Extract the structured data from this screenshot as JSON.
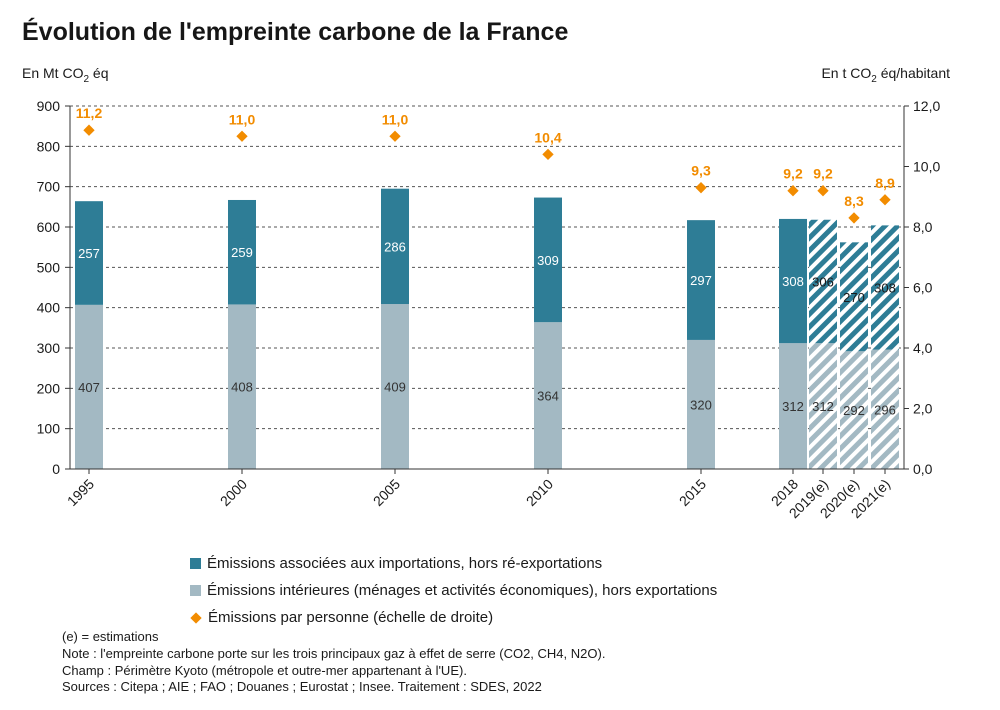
{
  "title": "Évolution de l'empreinte carbone de la France",
  "left_unit": {
    "prefix": "En Mt CO",
    "sub": "2",
    "suffix": " éq"
  },
  "right_unit": {
    "prefix": "En t CO",
    "sub": "2",
    "suffix": " éq/habitant"
  },
  "colors": {
    "imports": "#2e7d96",
    "domestic": "#a3b9c3",
    "per_person": "#f28c00"
  },
  "chart_data": {
    "type": "bar",
    "stacked": true,
    "categories": [
      "1995",
      "2000",
      "2005",
      "2010",
      "2015",
      "2018",
      "2019(e)",
      "2020(e)",
      "2021(e)"
    ],
    "estimated": [
      false,
      false,
      false,
      false,
      false,
      false,
      true,
      true,
      true
    ],
    "ylim": [
      0,
      900
    ],
    "yticks": [
      "0",
      "100",
      "200",
      "300",
      "400",
      "500",
      "600",
      "700",
      "800",
      "900"
    ],
    "y2lim": [
      0,
      12
    ],
    "y2ticks": [
      "0,0",
      "2,0",
      "4,0",
      "6,0",
      "8,0",
      "10,0",
      "12,0"
    ],
    "grid": true,
    "legend_position": "bottom",
    "series": [
      {
        "name": "Émissions intérieures (ménages et activités économiques), hors exportations",
        "values": [
          407,
          408,
          409,
          364,
          320,
          312,
          312,
          292,
          296
        ]
      },
      {
        "name": "Émissions associées aux importations, hors ré-exportations",
        "values": [
          257,
          259,
          286,
          309,
          297,
          308,
          306,
          270,
          308
        ]
      },
      {
        "name": "Émissions par personne (échelle de droite)",
        "axis": "right",
        "values": [
          11.2,
          11.0,
          11.0,
          10.4,
          9.3,
          9.2,
          9.2,
          8.3,
          8.9
        ],
        "labels": [
          "11,2",
          "11,0",
          "11,0",
          "10,4",
          "9,3",
          "9,2",
          "9,2",
          "8,3",
          "8,9"
        ]
      }
    ]
  },
  "legend": [
    "Émissions associées aux importations, hors ré-exportations",
    "Émissions intérieures (ménages et activités économiques), hors exportations",
    "Émissions par personne (échelle de droite)"
  ],
  "notes": [
    "(e) = estimations",
    "Note : l'empreinte carbone porte sur les trois principaux gaz à effet de serre (CO2, CH4, N2O).",
    "Champ : Périmètre Kyoto (métropole et outre-mer appartenant à l'UE).",
    "Sources : Citepa ; AIE ; FAO ; Douanes ; Eurostat ; Insee. Traitement : SDES, 2022"
  ]
}
